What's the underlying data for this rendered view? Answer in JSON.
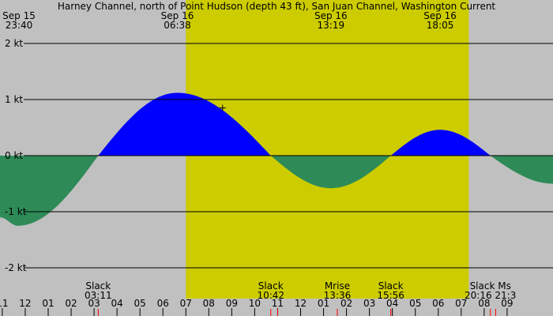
{
  "colors": {
    "night": "#c0c0c0",
    "day": "#cccc00",
    "flood": "#0000ff",
    "ebb": "#2e8b57",
    "grid": "#000000",
    "event_tick": "#ff0000"
  },
  "chart_data": {
    "type": "area",
    "title": "Harney Channel, north of Point Hudson (depth 43 ft), San Juan Channel, Washington Current",
    "xlabel": "",
    "ylabel": "",
    "x_range_hours": [
      -1.1,
      23.0
    ],
    "ylim": [
      -2.0,
      2.0
    ],
    "y_ticks": [
      {
        "value": 2,
        "label": "2 kt"
      },
      {
        "value": 1,
        "label": "1 kt"
      },
      {
        "value": 0,
        "label": "0 kt"
      },
      {
        "value": -1,
        "label": "-1 kt"
      },
      {
        "value": -2,
        "label": "-2 kt"
      }
    ],
    "hour_labels": [
      {
        "hour": -1,
        "label": "11"
      },
      {
        "hour": 0,
        "label": "12"
      },
      {
        "hour": 1,
        "label": "01"
      },
      {
        "hour": 2,
        "label": "02"
      },
      {
        "hour": 3,
        "label": "03"
      },
      {
        "hour": 4,
        "label": "04"
      },
      {
        "hour": 5,
        "label": "05"
      },
      {
        "hour": 6,
        "label": "06"
      },
      {
        "hour": 7,
        "label": "07"
      },
      {
        "hour": 8,
        "label": "08"
      },
      {
        "hour": 9,
        "label": "09"
      },
      {
        "hour": 10,
        "label": "10"
      },
      {
        "hour": 11,
        "label": "11"
      },
      {
        "hour": 12,
        "label": "12"
      },
      {
        "hour": 13,
        "label": "01"
      },
      {
        "hour": 14,
        "label": "02"
      },
      {
        "hour": 15,
        "label": "03"
      },
      {
        "hour": 16,
        "label": "04"
      },
      {
        "hour": 17,
        "label": "05"
      },
      {
        "hour": 18,
        "label": "06"
      },
      {
        "hour": 19,
        "label": "07"
      },
      {
        "hour": 20,
        "label": "08"
      },
      {
        "hour": 21,
        "label": "09"
      }
    ],
    "daylight_hours": [
      7.0,
      19.33
    ],
    "top_events": [
      {
        "hour": -0.33,
        "date": "Sep 15",
        "time": "23:40"
      },
      {
        "hour": 6.63,
        "date": "Sep 16",
        "time": "06:38"
      },
      {
        "hour": 13.32,
        "date": "Sep 16",
        "time": "13:19"
      },
      {
        "hour": 18.08,
        "date": "Sep 16",
        "time": "18:05"
      }
    ],
    "bottom_events": [
      {
        "hour": 3.18,
        "label": "Slack",
        "time": "03:11"
      },
      {
        "hour": 10.7,
        "label": "Slack",
        "time": "10:42"
      },
      {
        "hour": 13.6,
        "label": "Mrise",
        "time": "13:36"
      },
      {
        "hour": 15.93,
        "label": "Slack",
        "time": "15:56"
      },
      {
        "hour": 20.27,
        "label": "Slack Ms",
        "time": "20:16 21:3"
      }
    ],
    "event_ticks": [
      3.18,
      10.7,
      11.0,
      13.6,
      15.93,
      20.27,
      20.5
    ],
    "current_marker": {
      "hour": 8.6,
      "value": 0.85
    },
    "series": [
      {
        "points": [
          [
            -1.1,
            -1.1
          ],
          [
            -0.33,
            -1.25
          ],
          [
            3.18,
            0.0
          ],
          [
            6.63,
            1.12
          ],
          [
            10.7,
            0.0
          ],
          [
            13.32,
            -0.58
          ],
          [
            15.93,
            0.0
          ],
          [
            18.08,
            0.46
          ],
          [
            20.27,
            0.0
          ],
          [
            23.0,
            -0.5
          ]
        ]
      }
    ]
  }
}
